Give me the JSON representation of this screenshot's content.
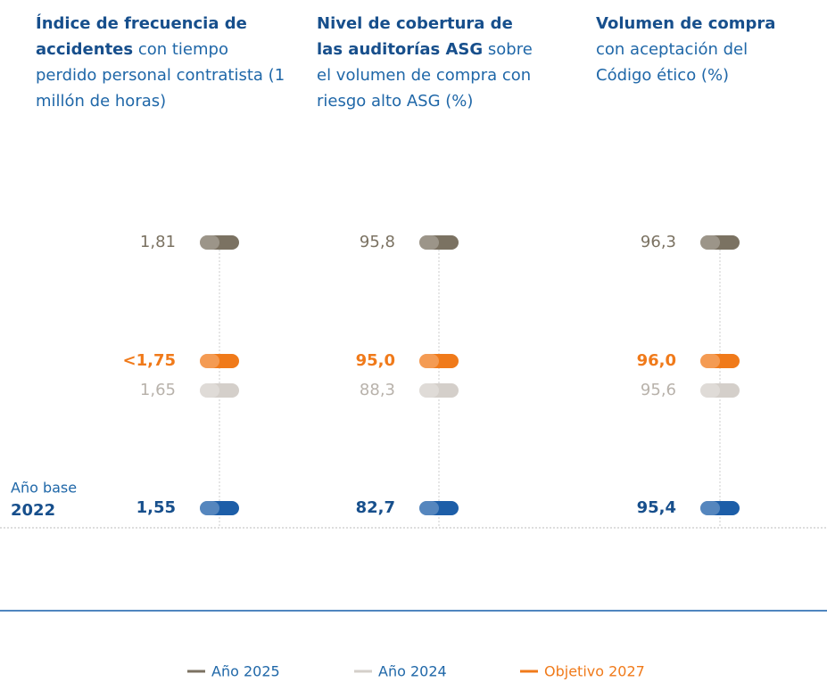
{
  "chart_data": {
    "type": "dot",
    "categories": [
      {
        "title_bold": "Índice de frecuencia de accidentes",
        "title_rest": "con tiempo perdido personal contratista (1 millón de horas)"
      },
      {
        "title_bold": "Nivel de cobertura de las auditorías ASG",
        "title_rest": "sobre el volumen de compra con riesgo alto ASG (%)"
      },
      {
        "title_bold": "Volumen de compra",
        "title_rest": "con aceptación del Código ético (%)"
      }
    ],
    "series": [
      {
        "name": "Año 2025",
        "color": "#7b7262",
        "values": [
          1.81,
          95.8,
          96.3
        ],
        "value_labels": [
          "1,81",
          "95,8",
          "96,3"
        ]
      },
      {
        "name": "Objetivo 2027",
        "color": "#f07a1a",
        "values": [
          1.75,
          95.0,
          96.0
        ],
        "value_labels": [
          "<1,75",
          "95,0",
          "96,0"
        ]
      },
      {
        "name": "Año 2024",
        "color": "#d4cfca",
        "values": [
          1.65,
          88.3,
          95.6
        ],
        "value_labels": [
          "1,65",
          "88,3",
          "95,6"
        ]
      }
    ],
    "base": {
      "label": "Año base",
      "year": "2022",
      "color": "#1d5ea8",
      "values": [
        1.55,
        82.7,
        95.4
      ],
      "value_labels": [
        "1,55",
        "82,7",
        "95,4"
      ]
    }
  }
}
